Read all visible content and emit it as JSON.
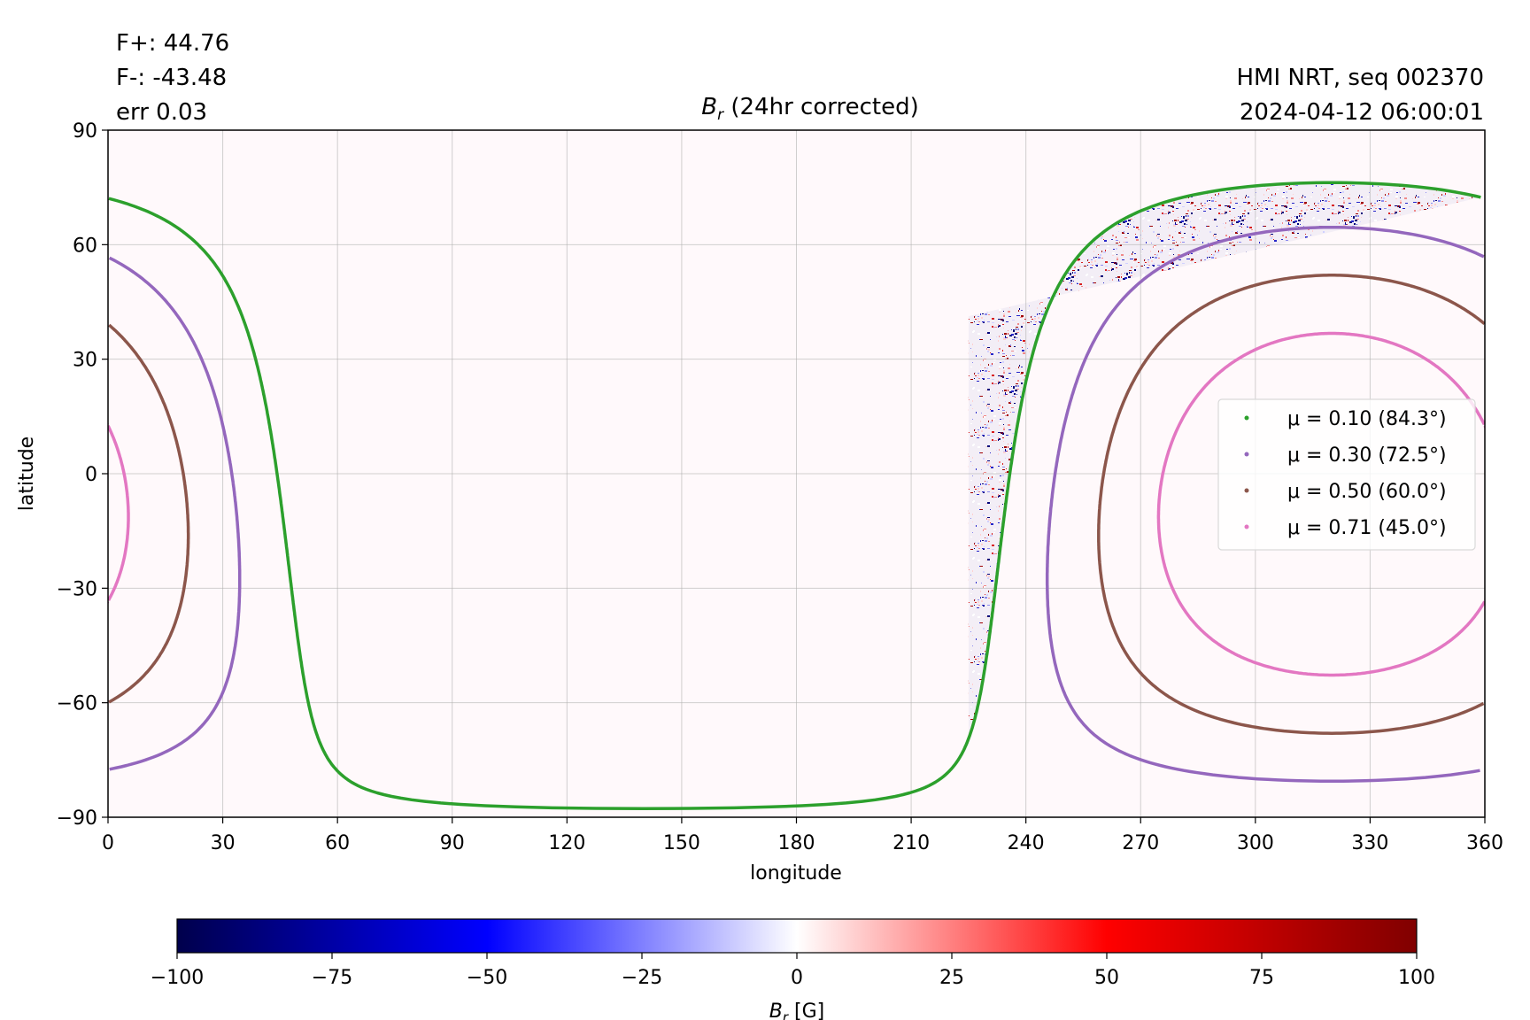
{
  "header": {
    "flux_pos": "F+: 44.76",
    "flux_neg": "F-: -43.48",
    "err": "err 0.03",
    "source": "HMI NRT, seq 002370",
    "timestamp": "2024-04-12 06:00:01",
    "title_symbol": "B",
    "title_sub": "r",
    "title_rest": "(24hr corrected)"
  },
  "chart_data": [
    {
      "type": "heatmap",
      "title": "Br (24hr corrected)",
      "xlabel": "longitude",
      "ylabel": "latitude",
      "xlim": [
        0,
        360
      ],
      "ylim": [
        -90,
        90
      ],
      "xticks": [
        0,
        30,
        60,
        90,
        120,
        150,
        180,
        210,
        240,
        270,
        300,
        330,
        360
      ],
      "yticks": [
        -90,
        -60,
        -30,
        0,
        30,
        60,
        90
      ],
      "xticklabels": [
        "0",
        "30",
        "60",
        "90",
        "120",
        "150",
        "180",
        "210",
        "240",
        "270",
        "300",
        "330",
        "360"
      ],
      "yticklabels": [
        "−90",
        "−60",
        "−30",
        "0",
        "30",
        "60",
        "90"
      ],
      "grid": true,
      "legend_placement": "center-right",
      "disk_center": {
        "longitude": 320,
        "latitude": -8
      },
      "colormap": "seismic",
      "series": [
        {
          "name": "μ = 0.10 (84.3°)",
          "mu": 0.1,
          "angle_deg": 84.3,
          "color": "#2ca02c"
        },
        {
          "name": "μ = 0.30 (72.5°)",
          "mu": 0.3,
          "angle_deg": 72.5,
          "color": "#9467bd"
        },
        {
          "name": "μ = 0.50 (60.0°)",
          "mu": 0.5,
          "angle_deg": 60.0,
          "color": "#8c564b"
        },
        {
          "name": "μ = 0.71 (45.0°)",
          "mu": 0.71,
          "angle_deg": 45.0,
          "color": "#e377c2"
        }
      ]
    },
    {
      "type": "colorbar",
      "label_symbol": "B",
      "label_sub": "r",
      "label_unit": "[G]",
      "range": [
        -100,
        100
      ],
      "ticks": [
        -100,
        -75,
        -50,
        -25,
        0,
        25,
        50,
        75,
        100
      ],
      "ticklabels": [
        "−100",
        "−75",
        "−50",
        "−25",
        "0",
        "25",
        "50",
        "75",
        "100"
      ],
      "colors": [
        "#00004c",
        "#0000ff",
        "#ffffff",
        "#ff0000",
        "#800000"
      ]
    }
  ]
}
